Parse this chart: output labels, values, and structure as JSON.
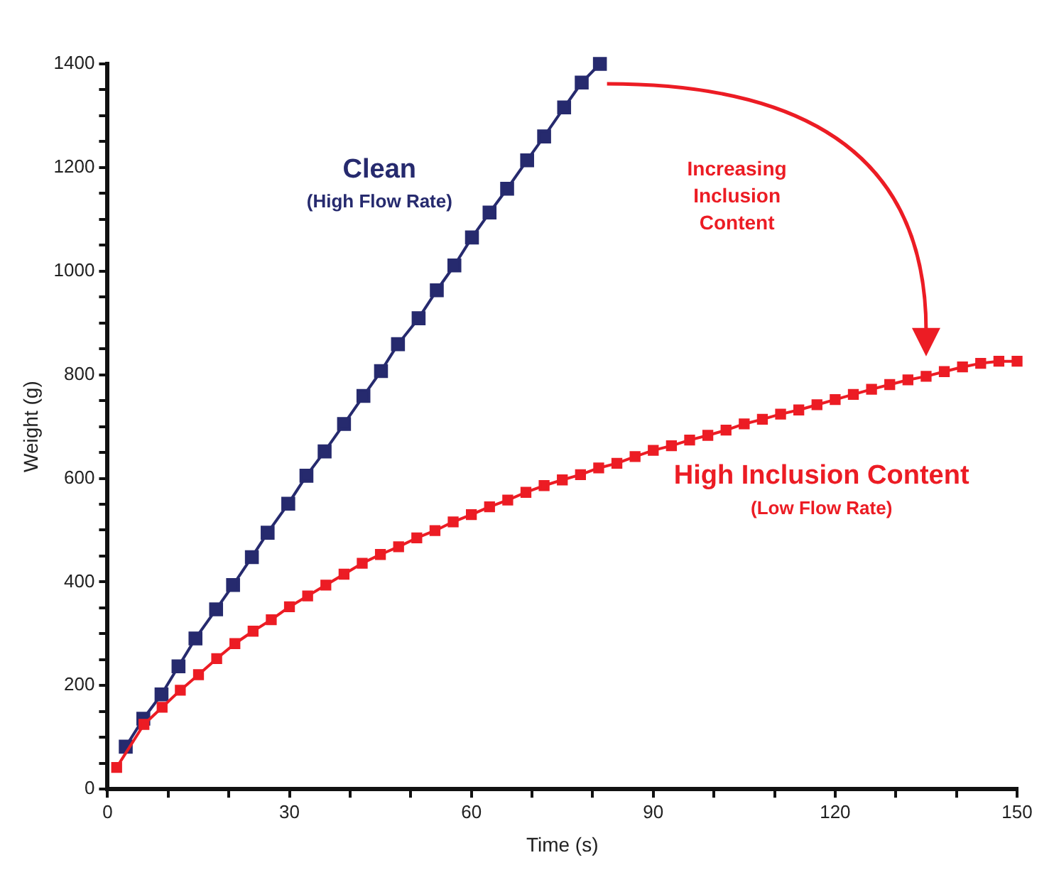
{
  "chart_data": {
    "type": "line",
    "xlabel": "Time (s)",
    "ylabel": "Weight (g)",
    "xlim": [
      0,
      150
    ],
    "xticks": [
      0,
      {
        "value": 10,
        "label": null
      },
      {
        "value": 20,
        "label": null
      },
      30,
      {
        "value": 40,
        "label": null
      },
      {
        "value": 50,
        "label": null
      },
      60,
      {
        "value": 70,
        "label": null
      },
      {
        "value": 80,
        "label": null
      },
      90,
      {
        "value": 100,
        "label": null
      },
      {
        "value": 110,
        "label": null
      },
      120,
      {
        "value": 130,
        "label": null
      },
      {
        "value": 140,
        "label": null
      },
      150
    ],
    "ylim": [
      0,
      1400
    ],
    "yticks": [
      0,
      {
        "value": 50,
        "label": null
      },
      {
        "value": 100,
        "label": null
      },
      {
        "value": 150,
        "label": null
      },
      200,
      {
        "value": 250,
        "label": null
      },
      {
        "value": 300,
        "label": null
      },
      {
        "value": 350,
        "label": null
      },
      400,
      {
        "value": 450,
        "label": null
      },
      {
        "value": 500,
        "label": null
      },
      {
        "value": 550,
        "label": null
      },
      600,
      {
        "value": 650,
        "label": null
      },
      {
        "value": 700,
        "label": null
      },
      {
        "value": 750,
        "label": null
      },
      800,
      {
        "value": 850,
        "label": null
      },
      {
        "value": 900,
        "label": null
      },
      {
        "value": 950,
        "label": null
      },
      1000,
      {
        "value": 1050,
        "label": null
      },
      {
        "value": 1100,
        "label": null
      },
      {
        "value": 1150,
        "label": null
      },
      1200,
      {
        "value": 1250,
        "label": null
      },
      {
        "value": 1300,
        "label": null
      },
      {
        "value": 1350,
        "label": null
      },
      1400
    ],
    "grid": false,
    "legend": false,
    "marker": "square",
    "line_style": "solid",
    "series": [
      {
        "name": "Clean",
        "color": "#262a6e",
        "x": [
          3,
          5.9,
          8.9,
          11.7,
          14.5,
          17.9,
          20.7,
          23.8,
          26.4,
          29.8,
          32.8,
          35.8,
          39,
          42.2,
          45.1,
          47.9,
          51.3,
          54.3,
          57.2,
          60.1,
          63,
          65.9,
          69.2,
          72,
          75.3,
          78.2,
          81.2
        ],
        "values": [
          82,
          136,
          183,
          237,
          291,
          347,
          394,
          448,
          495,
          551,
          605,
          652,
          705,
          759,
          807,
          859,
          909,
          963,
          1011,
          1065,
          1113,
          1159,
          1214,
          1260,
          1316,
          1364,
          1400
        ]
      },
      {
        "name": "High Inclusion Content",
        "color": "#ec1c24",
        "x": [
          1.5,
          6,
          9,
          12,
          15,
          18,
          21,
          24,
          27,
          30,
          33,
          36,
          39,
          42,
          45,
          48,
          51,
          54,
          57,
          60,
          63,
          66,
          69,
          72,
          75,
          78,
          81,
          84,
          87,
          90,
          93,
          96,
          99,
          102,
          105,
          108,
          111,
          114,
          117,
          120,
          123,
          126,
          129,
          132,
          135,
          138,
          141,
          144,
          147,
          150
        ],
        "values": [
          42,
          125,
          158,
          191,
          221,
          252,
          281,
          305,
          327,
          352,
          373,
          394,
          415,
          436,
          453,
          468,
          485,
          499,
          516,
          530,
          545,
          558,
          573,
          586,
          597,
          607,
          620,
          629,
          642,
          654,
          663,
          674,
          683,
          693,
          705,
          714,
          724,
          732,
          742,
          752,
          762,
          772,
          781,
          790,
          797,
          806,
          815,
          822,
          826,
          826
        ]
      }
    ],
    "annotations": [
      "(High Flow Rate)",
      "(Low Flow Rate)",
      "Increasing Inclusion Content"
    ]
  }
}
